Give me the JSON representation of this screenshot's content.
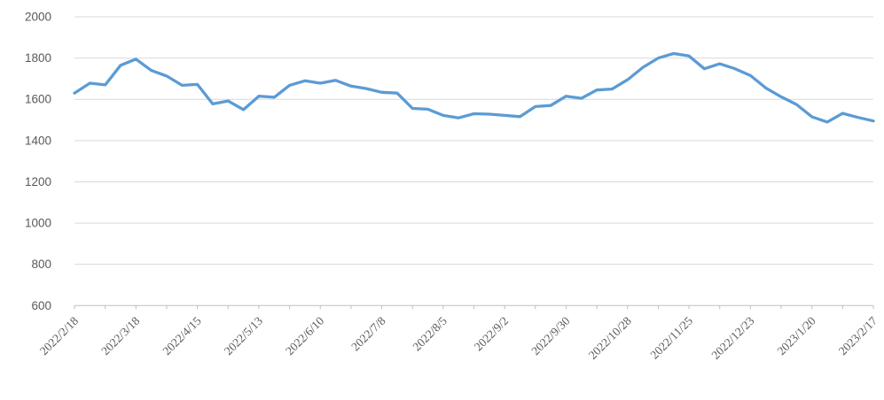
{
  "chart_data": {
    "type": "line",
    "title": "",
    "xlabel": "",
    "ylabel": "",
    "legend": "none",
    "grid": true,
    "ylim": [
      600,
      2000
    ],
    "ytick_step": 200,
    "yticks": [
      600,
      800,
      1000,
      1200,
      1400,
      1600,
      1800,
      2000
    ],
    "x_axis_shown_labels": [
      "2022/2/18",
      "2022/3/18",
      "2022/4/15",
      "2022/5/13",
      "2022/6/10",
      "2022/7/8",
      "2022/8/5",
      "2022/9/2",
      "2022/9/30",
      "2022/10/28",
      "2022/11/25",
      "2022/12/23",
      "2023/1/20",
      "2023/2/17"
    ],
    "x": [
      "2022/2/18",
      "2022/2/25",
      "2022/3/4",
      "2022/3/11",
      "2022/3/18",
      "2022/3/25",
      "2022/4/1",
      "2022/4/8",
      "2022/4/15",
      "2022/4/22",
      "2022/4/29",
      "2022/5/6",
      "2022/5/13",
      "2022/5/20",
      "2022/5/27",
      "2022/6/3",
      "2022/6/10",
      "2022/6/17",
      "2022/6/24",
      "2022/7/1",
      "2022/7/8",
      "2022/7/15",
      "2022/7/22",
      "2022/7/29",
      "2022/8/5",
      "2022/8/12",
      "2022/8/19",
      "2022/8/26",
      "2022/9/2",
      "2022/9/9",
      "2022/9/16",
      "2022/9/23",
      "2022/9/30",
      "2022/10/7",
      "2022/10/14",
      "2022/10/21",
      "2022/10/28",
      "2022/11/4",
      "2022/11/11",
      "2022/11/18",
      "2022/11/25",
      "2022/12/2",
      "2022/12/9",
      "2022/12/16",
      "2022/12/23",
      "2022/12/30",
      "2023/1/6",
      "2023/1/13",
      "2023/1/20",
      "2023/1/27",
      "2023/2/3",
      "2023/2/10",
      "2023/2/17"
    ],
    "values": [
      1630,
      1678,
      1670,
      1765,
      1795,
      1740,
      1713,
      1668,
      1672,
      1578,
      1592,
      1550,
      1615,
      1610,
      1668,
      1690,
      1678,
      1692,
      1664,
      1652,
      1634,
      1630,
      1556,
      1552,
      1522,
      1510,
      1530,
      1528,
      1522,
      1516,
      1565,
      1570,
      1615,
      1605,
      1645,
      1650,
      1695,
      1755,
      1800,
      1822,
      1810,
      1748,
      1772,
      1748,
      1715,
      1655,
      1612,
      1575,
      1515,
      1490,
      1532,
      1512,
      1495
    ],
    "label_every_n_points": 4,
    "colors": {
      "series_line": "#5B9BD5",
      "gridline": "#D9D9D9",
      "axis_line": "#BFBFBF",
      "axis_text": "#595959",
      "background": "#FFFFFF"
    }
  }
}
